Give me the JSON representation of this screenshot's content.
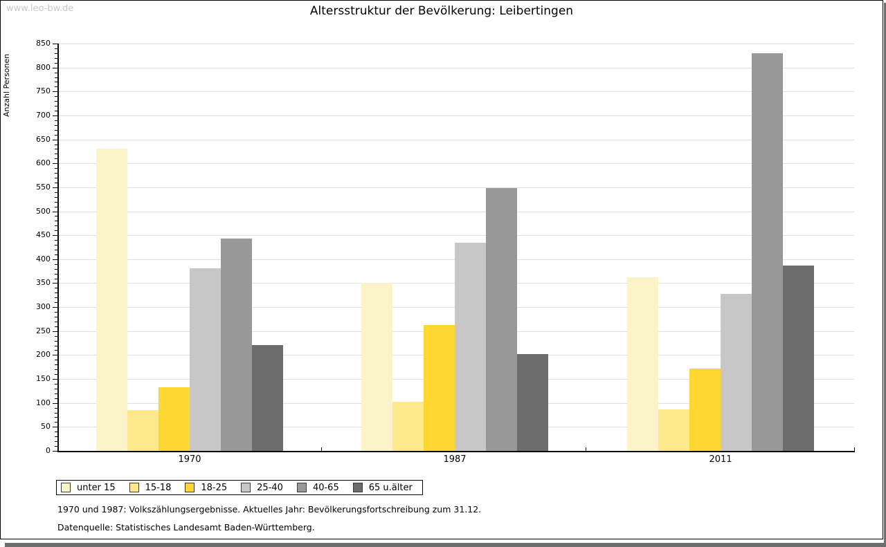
{
  "watermark": "www.leo-bw.de",
  "title": "Altersstruktur der Bevölkerung: Leibertingen",
  "footnotes": {
    "line1": "1970 und 1987: Volkszählungsergebnisse. Aktuelles Jahr: Bevölkerungsfortschreibung zum 31.12.",
    "line2": "Datenquelle: Statistisches Landesamt Baden-Württemberg."
  },
  "colors": {
    "grid": "#e0e0e0",
    "axis": "#000000",
    "watermark": "#c9c9c9",
    "shadow": "#6e6e6e"
  },
  "chart_data": {
    "type": "bar",
    "title": "Altersstruktur der Bevölkerung: Leibertingen",
    "xlabel": "",
    "ylabel": "Anzahl Personen",
    "categories": [
      "1970",
      "1987",
      "2011"
    ],
    "series": [
      {
        "name": "unter 15",
        "color": "#faf4c8",
        "values": [
          630,
          350,
          362
        ]
      },
      {
        "name": "15-18",
        "color": "#fde98c",
        "values": [
          85,
          102,
          86
        ]
      },
      {
        "name": "18-25",
        "color": "#fdd632",
        "values": [
          133,
          263,
          172
        ]
      },
      {
        "name": "25-40",
        "color": "#c7c7c7",
        "values": [
          381,
          434,
          327
        ]
      },
      {
        "name": "40-65",
        "color": "#989898",
        "values": [
          443,
          548,
          830
        ]
      },
      {
        "name": "65 u.älter",
        "color": "#6c6c6c",
        "values": [
          221,
          202,
          387
        ]
      }
    ],
    "ylim": [
      0,
      850
    ],
    "ytick_step": 50,
    "ytick_minor_step": 10,
    "grid": true,
    "legend_position": "bottom-left"
  }
}
